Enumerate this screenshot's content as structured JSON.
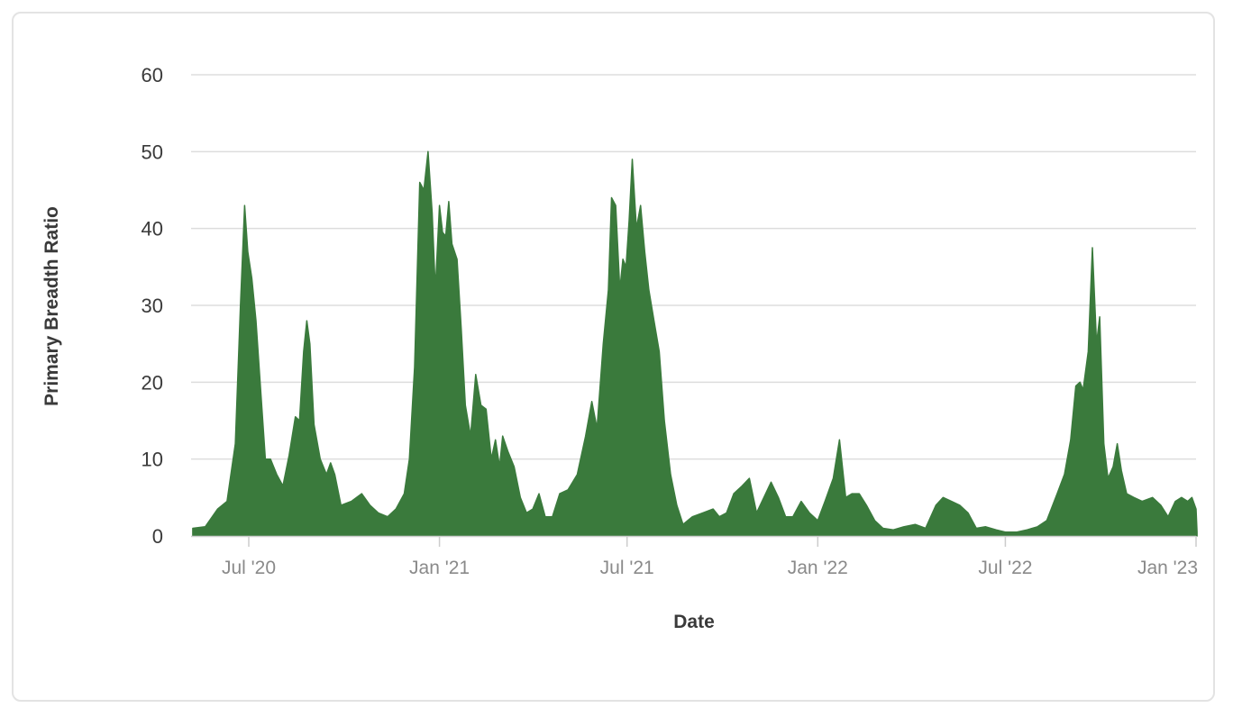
{
  "colors": {
    "series": "#3a7a3c",
    "grid": "#dddddd",
    "axis": "#cccccc"
  },
  "chart_data": {
    "type": "area",
    "title": "",
    "xlabel": "Date",
    "ylabel": "Primary Breadth Ratio",
    "ylim": [
      0,
      60
    ],
    "xlim": [
      "2020-05-08",
      "2023-01-02"
    ],
    "y_ticks": [
      0,
      10,
      20,
      30,
      40,
      50,
      60
    ],
    "x_ticks": [
      {
        "label": "Jul '20",
        "date": "2020-07-01"
      },
      {
        "label": "Jan '21",
        "date": "2021-01-01"
      },
      {
        "label": "Jul '21",
        "date": "2021-07-01"
      },
      {
        "label": "Jan '22",
        "date": "2022-01-01"
      },
      {
        "label": "Jul '22",
        "date": "2022-07-01"
      },
      {
        "label": "Jan '23",
        "date": "2023-01-01"
      }
    ],
    "grid": true,
    "legend": "none",
    "series": [
      {
        "points": [
          [
            "2020-05-08",
            1.0
          ],
          [
            "2020-05-20",
            1.2
          ],
          [
            "2020-06-01",
            3.5
          ],
          [
            "2020-06-10",
            4.5
          ],
          [
            "2020-06-18",
            12
          ],
          [
            "2020-06-23",
            30
          ],
          [
            "2020-06-27",
            43
          ],
          [
            "2020-06-30",
            37
          ],
          [
            "2020-07-04",
            33.5
          ],
          [
            "2020-07-08",
            28
          ],
          [
            "2020-07-12",
            20
          ],
          [
            "2020-07-17",
            10
          ],
          [
            "2020-07-22",
            10
          ],
          [
            "2020-07-28",
            8
          ],
          [
            "2020-08-03",
            6.5
          ],
          [
            "2020-08-09",
            10.5
          ],
          [
            "2020-08-15",
            15.5
          ],
          [
            "2020-08-19",
            15
          ],
          [
            "2020-08-23",
            24
          ],
          [
            "2020-08-26",
            28
          ],
          [
            "2020-08-29",
            25
          ],
          [
            "2020-09-02",
            14.5
          ],
          [
            "2020-09-08",
            10
          ],
          [
            "2020-09-14",
            8
          ],
          [
            "2020-09-18",
            9.5
          ],
          [
            "2020-09-22",
            8
          ],
          [
            "2020-09-28",
            4
          ],
          [
            "2020-10-08",
            4.5
          ],
          [
            "2020-10-18",
            5.5
          ],
          [
            "2020-10-26",
            4
          ],
          [
            "2020-11-03",
            3.0
          ],
          [
            "2020-11-12",
            2.5
          ],
          [
            "2020-11-20",
            3.5
          ],
          [
            "2020-11-28",
            5.5
          ],
          [
            "2020-12-03",
            10
          ],
          [
            "2020-12-08",
            22
          ],
          [
            "2020-12-13",
            46
          ],
          [
            "2020-12-17",
            45
          ],
          [
            "2020-12-21",
            50
          ],
          [
            "2020-12-25",
            42
          ],
          [
            "2020-12-28",
            32
          ],
          [
            "2021-01-01",
            43
          ],
          [
            "2021-01-04",
            39.5
          ],
          [
            "2021-01-07",
            39
          ],
          [
            "2021-01-10",
            43.5
          ],
          [
            "2021-01-13",
            38
          ],
          [
            "2021-01-18",
            36
          ],
          [
            "2021-01-22",
            27
          ],
          [
            "2021-01-26",
            17
          ],
          [
            "2021-01-31",
            13
          ],
          [
            "2021-02-05",
            21
          ],
          [
            "2021-02-10",
            17
          ],
          [
            "2021-02-15",
            16.5
          ],
          [
            "2021-02-20",
            10
          ],
          [
            "2021-02-24",
            12.5
          ],
          [
            "2021-02-28",
            9
          ],
          [
            "2021-03-03",
            13
          ],
          [
            "2021-03-08",
            11
          ],
          [
            "2021-03-14",
            9
          ],
          [
            "2021-03-20",
            5
          ],
          [
            "2021-03-26",
            3
          ],
          [
            "2021-04-01",
            3.5
          ],
          [
            "2021-04-07",
            5.5
          ],
          [
            "2021-04-13",
            2.5
          ],
          [
            "2021-04-20",
            2.5
          ],
          [
            "2021-04-27",
            5.5
          ],
          [
            "2021-05-05",
            6
          ],
          [
            "2021-05-14",
            8
          ],
          [
            "2021-05-22",
            13
          ],
          [
            "2021-05-28",
            17.5
          ],
          [
            "2021-06-02",
            14
          ],
          [
            "2021-06-08",
            25
          ],
          [
            "2021-06-13",
            32
          ],
          [
            "2021-06-16",
            44
          ],
          [
            "2021-06-20",
            43
          ],
          [
            "2021-06-24",
            32
          ],
          [
            "2021-06-27",
            36
          ],
          [
            "2021-06-30",
            35
          ],
          [
            "2021-07-03",
            41
          ],
          [
            "2021-07-06",
            49
          ],
          [
            "2021-07-10",
            40
          ],
          [
            "2021-07-14",
            43
          ],
          [
            "2021-07-18",
            37
          ],
          [
            "2021-07-22",
            32
          ],
          [
            "2021-07-27",
            28
          ],
          [
            "2021-08-01",
            24
          ],
          [
            "2021-08-06",
            15
          ],
          [
            "2021-08-12",
            8
          ],
          [
            "2021-08-18",
            4
          ],
          [
            "2021-08-24",
            1.5
          ],
          [
            "2021-09-02",
            2.5
          ],
          [
            "2021-09-12",
            3
          ],
          [
            "2021-09-22",
            3.5
          ],
          [
            "2021-09-28",
            2.5
          ],
          [
            "2021-10-05",
            3
          ],
          [
            "2021-10-12",
            5.5
          ],
          [
            "2021-10-20",
            6.5
          ],
          [
            "2021-10-27",
            7.5
          ],
          [
            "2021-11-03",
            3
          ],
          [
            "2021-11-10",
            5
          ],
          [
            "2021-11-17",
            7
          ],
          [
            "2021-11-24",
            5
          ],
          [
            "2021-12-01",
            2.5
          ],
          [
            "2021-12-08",
            2.5
          ],
          [
            "2021-12-16",
            4.5
          ],
          [
            "2021-12-24",
            3
          ],
          [
            "2022-01-01",
            2.0
          ],
          [
            "2022-01-08",
            4.5
          ],
          [
            "2022-01-16",
            7.5
          ],
          [
            "2022-01-22",
            12.5
          ],
          [
            "2022-01-28",
            5
          ],
          [
            "2022-02-03",
            5.5
          ],
          [
            "2022-02-10",
            5.5
          ],
          [
            "2022-02-17",
            4
          ],
          [
            "2022-02-25",
            2
          ],
          [
            "2022-03-05",
            1
          ],
          [
            "2022-03-15",
            0.8
          ],
          [
            "2022-03-25",
            1.2
          ],
          [
            "2022-04-05",
            1.5
          ],
          [
            "2022-04-15",
            1.0
          ],
          [
            "2022-04-25",
            4
          ],
          [
            "2022-05-02",
            5
          ],
          [
            "2022-05-10",
            4.5
          ],
          [
            "2022-05-18",
            4
          ],
          [
            "2022-05-26",
            3
          ],
          [
            "2022-06-03",
            1.0
          ],
          [
            "2022-06-12",
            1.2
          ],
          [
            "2022-06-22",
            0.8
          ],
          [
            "2022-07-01",
            0.5
          ],
          [
            "2022-07-12",
            0.5
          ],
          [
            "2022-07-22",
            0.8
          ],
          [
            "2022-08-01",
            1.2
          ],
          [
            "2022-08-10",
            2.0
          ],
          [
            "2022-08-20",
            5.5
          ],
          [
            "2022-08-27",
            8
          ],
          [
            "2022-09-02",
            12.5
          ],
          [
            "2022-09-07",
            19.5
          ],
          [
            "2022-09-11",
            20
          ],
          [
            "2022-09-14",
            19
          ],
          [
            "2022-09-19",
            24
          ],
          [
            "2022-09-23",
            37.5
          ],
          [
            "2022-09-27",
            25
          ],
          [
            "2022-09-30",
            28.5
          ],
          [
            "2022-10-04",
            12
          ],
          [
            "2022-10-08",
            7.5
          ],
          [
            "2022-10-13",
            9
          ],
          [
            "2022-10-17",
            12
          ],
          [
            "2022-10-21",
            8.5
          ],
          [
            "2022-10-26",
            5.5
          ],
          [
            "2022-11-02",
            5
          ],
          [
            "2022-11-10",
            4.5
          ],
          [
            "2022-11-20",
            5
          ],
          [
            "2022-11-28",
            4
          ],
          [
            "2022-12-05",
            2.5
          ],
          [
            "2022-12-12",
            4.5
          ],
          [
            "2022-12-18",
            5
          ],
          [
            "2022-12-24",
            4.5
          ],
          [
            "2022-12-28",
            5
          ],
          [
            "2023-01-01",
            3.5
          ],
          [
            "2023-01-02",
            0.5
          ]
        ]
      }
    ]
  }
}
